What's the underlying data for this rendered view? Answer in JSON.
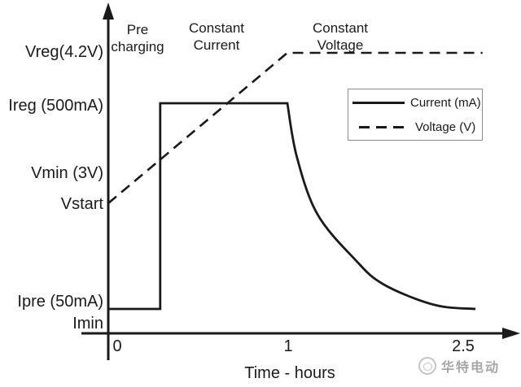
{
  "colors": {
    "ink": "#1a1a1a",
    "background": "#ffffff",
    "legend_border": "#8d8d8d",
    "watermark_text": "#a7a7a7",
    "watermark_logo": "#c4c4c4"
  },
  "watermark": {
    "text": "华特电动"
  },
  "chart_data": {
    "type": "line",
    "title": "",
    "xlabel": "Time - hours",
    "ylabel": "",
    "x_ticks": [
      0,
      1,
      2.5
    ],
    "x_range": [
      0,
      2.7
    ],
    "grid": false,
    "legend_position": "right-middle-inside",
    "phases": [
      {
        "label": "Pre charging",
        "t_start": 0,
        "t_end": 0.29
      },
      {
        "label": "Constant Current",
        "t_start": 0.29,
        "t_end": 1
      },
      {
        "label": "Constant Voltage",
        "t_start": 1,
        "t_end": 2.7
      }
    ],
    "y_levels": [
      {
        "id": "vreg",
        "label": "Vreg(4.2V)",
        "series": "voltage",
        "value": 4.2,
        "unit": "V"
      },
      {
        "id": "ireg",
        "label": "Ireg (500mA)",
        "series": "current",
        "value": 500,
        "unit": "mA"
      },
      {
        "id": "vmin",
        "label": "Vmin (3V)",
        "series": "voltage",
        "value": 3,
        "unit": "V"
      },
      {
        "id": "vstart",
        "label": "Vstart",
        "series": "voltage"
      },
      {
        "id": "ipre",
        "label": "Ipre (50mA)",
        "series": "current",
        "value": 50,
        "unit": "mA"
      },
      {
        "id": "imin",
        "label": "Imin",
        "series": "current"
      }
    ],
    "series": [
      {
        "name": "Current (mA)",
        "line_style": "solid",
        "segments": [
          {
            "shape": "line",
            "from": {
              "t": 0,
              "level": "ipre"
            },
            "to": {
              "t": 0.29,
              "level": "ipre"
            }
          },
          {
            "shape": "line",
            "from": {
              "t": 0.29,
              "level": "ipre"
            },
            "to": {
              "t": 0.29,
              "level": "ireg"
            }
          },
          {
            "shape": "line",
            "from": {
              "t": 0.29,
              "level": "ireg"
            },
            "to": {
              "t": 1,
              "level": "ireg"
            }
          },
          {
            "shape": "exp-decay",
            "from": {
              "t": 1,
              "level": "ireg"
            },
            "to": {
              "t": 2.62,
              "level": "ipre"
            }
          }
        ]
      },
      {
        "name": "Voltage (V)",
        "line_style": "dashed",
        "segments": [
          {
            "shape": "line",
            "from": {
              "t": 0,
              "level": "vstart"
            },
            "to": {
              "t": 1,
              "level": "vreg"
            }
          },
          {
            "shape": "line",
            "from": {
              "t": 1,
              "level": "vreg"
            },
            "to": {
              "t": 2.68,
              "level": "vreg"
            }
          }
        ]
      }
    ]
  }
}
